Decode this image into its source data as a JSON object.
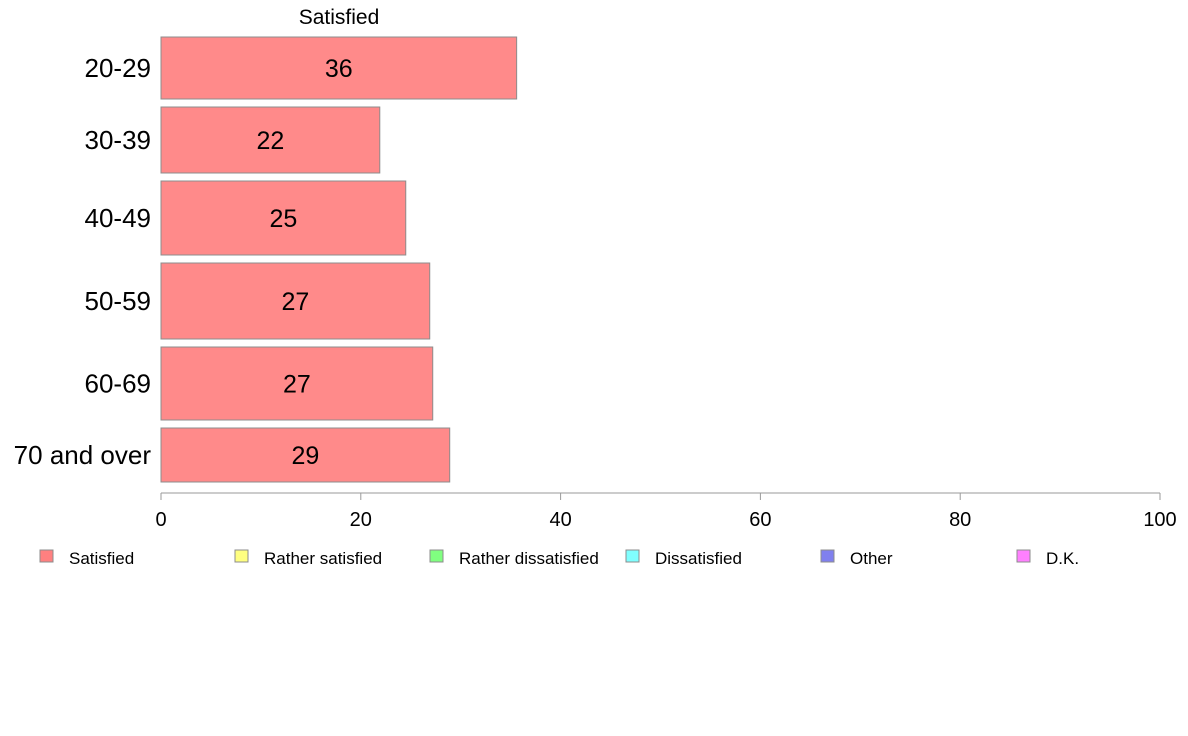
{
  "chart_data": {
    "type": "bar",
    "orientation": "horizontal",
    "header": "Satisfied",
    "categories": [
      "20-29",
      "30-39",
      "40-49",
      "50-59",
      "60-69",
      "70 and over"
    ],
    "series": [
      {
        "name": "Satisfied",
        "values": [
          35.6,
          21.9,
          24.5,
          26.9,
          27.2,
          28.9
        ],
        "labels": [
          "36",
          "22",
          "25",
          "27",
          "27",
          "29"
        ],
        "color": "#ff8a8a"
      }
    ],
    "xlim": [
      0,
      100
    ],
    "x_ticks": [
      0,
      20,
      40,
      60,
      80,
      100
    ],
    "legend": {
      "placement": "bottom",
      "entries": [
        {
          "name": "Satisfied",
          "color": "#ff8080"
        },
        {
          "name": "Rather satisfied",
          "color": "#ffff80"
        },
        {
          "name": "Rather dissatisfied",
          "color": "#80ff80"
        },
        {
          "name": "Dissatisfied",
          "color": "#80ffff"
        },
        {
          "name": "Other",
          "color": "#8080ee"
        },
        {
          "name": "D.K.",
          "color": "#ff80ff"
        }
      ]
    },
    "grid": false
  }
}
